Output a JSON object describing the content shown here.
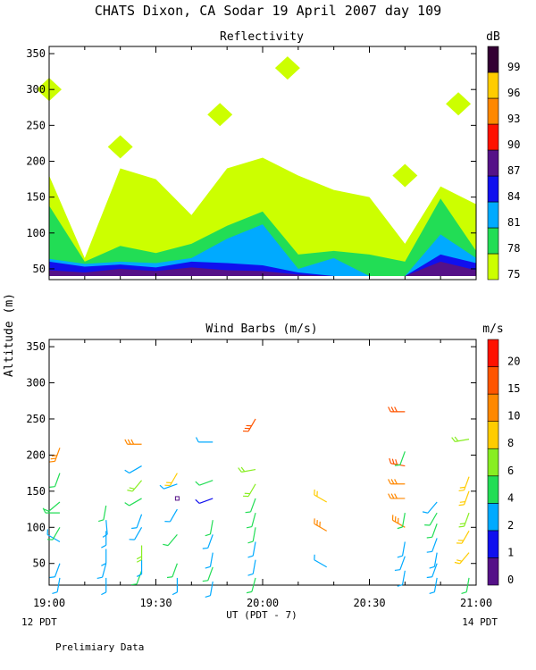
{
  "title": "CHATS Dixon, CA  Sodar  19 April 2007  day 109",
  "ylabel": "Altitude (m)",
  "xlabel": "UT  (PDT - 7)",
  "left_note": "12 PDT",
  "right_note": "14 PDT",
  "footer": "Prelimiary Data",
  "chart_data": [
    {
      "type": "heatmap",
      "title": "Reflectivity",
      "x_ticks": [
        "19:00",
        "19:30",
        "20:00",
        "20:30",
        "21:00"
      ],
      "y_ticks": [
        50,
        100,
        150,
        200,
        250,
        300,
        350
      ],
      "ylim": [
        35,
        360
      ],
      "colorbar": {
        "unit": "dB",
        "levels": [
          75,
          78,
          81,
          84,
          87,
          90,
          93,
          96,
          99
        ],
        "colors": [
          "#ccff00",
          "#22dd55",
          "#00aaff",
          "#1010ee",
          "#551188",
          "#ff1100",
          "#ff8800",
          "#ffcc00",
          "#330033"
        ]
      },
      "profiles": [
        {
          "time": "19:00",
          "d87": 48,
          "d84": 60,
          "d81": 64,
          "d78": 138,
          "d75": 180
        },
        {
          "time": "19:10",
          "d87": 45,
          "d84": 53,
          "d81": 57,
          "d78": 60,
          "d75": 65
        },
        {
          "time": "19:20",
          "d87": 50,
          "d84": 56,
          "d81": 60,
          "d78": 82,
          "d75": 190
        },
        {
          "time": "19:30",
          "d87": 47,
          "d84": 52,
          "d81": 58,
          "d78": 72,
          "d75": 175
        },
        {
          "time": "19:40",
          "d87": 52,
          "d84": 60,
          "d81": 65,
          "d78": 85,
          "d75": 125
        },
        {
          "time": "19:50",
          "d87": 48,
          "d84": 58,
          "d81": 92,
          "d78": 110,
          "d75": 190
        },
        {
          "time": "20:00",
          "d87": 47,
          "d84": 55,
          "d81": 112,
          "d78": 130,
          "d75": 205
        },
        {
          "time": "20:10",
          "d87": 42,
          "d84": 45,
          "d81": 50,
          "d78": 70,
          "d75": 180
        },
        {
          "time": "20:20",
          "d87": 40,
          "d84": 40,
          "d81": 65,
          "d78": 75,
          "d75": 160
        },
        {
          "time": "20:30",
          "d87": 40,
          "d84": 40,
          "d81": 40,
          "d78": 70,
          "d75": 150
        },
        {
          "time": "20:40",
          "d87": 40,
          "d84": 40,
          "d81": 40,
          "d78": 60,
          "d75": 85
        },
        {
          "time": "20:50",
          "d87": 60,
          "d84": 70,
          "d81": 98,
          "d78": 148,
          "d75": 165
        },
        {
          "time": "21:00",
          "d87": 48,
          "d84": 58,
          "d81": 65,
          "d78": 75,
          "d75": 140
        }
      ],
      "patches": [
        {
          "time": "19:20",
          "alt": 220,
          "db": 75
        },
        {
          "time": "19:48",
          "alt": 265,
          "db": 75
        },
        {
          "time": "20:07",
          "alt": 330,
          "db": 75
        },
        {
          "time": "20:40",
          "alt": 180,
          "db": 75
        },
        {
          "time": "20:55",
          "alt": 280,
          "db": 75
        },
        {
          "time": "19:00",
          "alt": 300,
          "db": 75
        }
      ]
    },
    {
      "type": "scatter",
      "title": "Wind Barbs (m/s)",
      "x_ticks": [
        "19:00",
        "19:30",
        "20:00",
        "20:30",
        "21:00"
      ],
      "y_ticks": [
        50,
        100,
        150,
        200,
        250,
        300,
        350
      ],
      "ylim": [
        20,
        360
      ],
      "colorbar": {
        "unit": "m/s",
        "levels": [
          0,
          1,
          2,
          4,
          6,
          8,
          10,
          15,
          20
        ],
        "colors": [
          "#551188",
          "#1010ee",
          "#00aaff",
          "#22dd55",
          "#88ee22",
          "#ffcc00",
          "#ff8800",
          "#ff5500",
          "#ff1100"
        ]
      },
      "columns": [
        {
          "time": "19:03",
          "barbs": [
            {
              "alt": 30,
              "dir": 190,
              "spd": 3
            },
            {
              "alt": 50,
              "dir": 200,
              "spd": 3
            },
            {
              "alt": 80,
              "dir": 300,
              "spd": 2
            },
            {
              "alt": 100,
              "dir": 210,
              "spd": 5
            },
            {
              "alt": 120,
              "dir": 270,
              "spd": 5
            },
            {
              "alt": 135,
              "dir": 230,
              "spd": 4
            },
            {
              "alt": 175,
              "dir": 200,
              "spd": 5
            },
            {
              "alt": 210,
              "dir": 200,
              "spd": 10
            }
          ]
        },
        {
          "time": "19:16",
          "barbs": [
            {
              "alt": 30,
              "dir": 180,
              "spd": 3
            },
            {
              "alt": 50,
              "dir": 195,
              "spd": 3
            },
            {
              "alt": 70,
              "dir": 180,
              "spd": 3
            },
            {
              "alt": 95,
              "dir": 180,
              "spd": 3
            },
            {
              "alt": 110,
              "dir": 175,
              "spd": 3
            },
            {
              "alt": 130,
              "dir": 190,
              "spd": 5
            }
          ]
        },
        {
          "time": "19:26",
          "barbs": [
            {
              "alt": 40,
              "dir": 200,
              "spd": 5
            },
            {
              "alt": 55,
              "dir": 180,
              "spd": 3
            },
            {
              "alt": 75,
              "dir": 180,
              "spd": 6
            },
            {
              "alt": 100,
              "dir": 210,
              "spd": 3
            },
            {
              "alt": 118,
              "dir": 200,
              "spd": 3
            },
            {
              "alt": 140,
              "dir": 240,
              "spd": 4
            },
            {
              "alt": 165,
              "dir": 220,
              "spd": 6
            },
            {
              "alt": 185,
              "dir": 240,
              "spd": 3
            },
            {
              "alt": 215,
              "dir": 270,
              "spd": 10
            }
          ]
        },
        {
          "time": "19:36",
          "barbs": [
            {
              "alt": 30,
              "dir": 180,
              "spd": 3
            },
            {
              "alt": 50,
              "dir": 200,
              "spd": 4
            },
            {
              "alt": 90,
              "dir": 220,
              "spd": 5
            },
            {
              "alt": 125,
              "dir": 210,
              "spd": 3
            },
            {
              "alt": 140,
              "dir": 0,
              "spd": 0
            },
            {
              "alt": 160,
              "dir": 250,
              "spd": 2
            },
            {
              "alt": 175,
              "dir": 210,
              "spd": 8
            }
          ]
        },
        {
          "time": "19:46",
          "barbs": [
            {
              "alt": 25,
              "dir": 190,
              "spd": 3
            },
            {
              "alt": 45,
              "dir": 200,
              "spd": 4
            },
            {
              "alt": 65,
              "dir": 190,
              "spd": 3
            },
            {
              "alt": 90,
              "dir": 200,
              "spd": 3
            },
            {
              "alt": 110,
              "dir": 190,
              "spd": 5
            },
            {
              "alt": 140,
              "dir": 250,
              "spd": 1
            },
            {
              "alt": 165,
              "dir": 250,
              "spd": 5
            },
            {
              "alt": 218,
              "dir": 270,
              "spd": 2
            }
          ]
        },
        {
          "time": "19:58",
          "barbs": [
            {
              "alt": 30,
              "dir": 195,
              "spd": 4
            },
            {
              "alt": 55,
              "dir": 190,
              "spd": 3
            },
            {
              "alt": 80,
              "dir": 190,
              "spd": 3
            },
            {
              "alt": 100,
              "dir": 190,
              "spd": 4
            },
            {
              "alt": 120,
              "dir": 195,
              "spd": 5
            },
            {
              "alt": 140,
              "dir": 200,
              "spd": 5
            },
            {
              "alt": 160,
              "dir": 210,
              "spd": 6
            },
            {
              "alt": 180,
              "dir": 260,
              "spd": 6
            },
            {
              "alt": 250,
              "dir": 210,
              "spd": 15
            }
          ]
        },
        {
          "time": "20:18",
          "barbs": [
            {
              "alt": 45,
              "dir": 300,
              "spd": 2
            },
            {
              "alt": 95,
              "dir": 300,
              "spd": 10
            },
            {
              "alt": 135,
              "dir": 300,
              "spd": 8
            }
          ]
        },
        {
          "time": "20:40",
          "barbs": [
            {
              "alt": 40,
              "dir": 190,
              "spd": 3
            },
            {
              "alt": 60,
              "dir": 200,
              "spd": 3
            },
            {
              "alt": 80,
              "dir": 190,
              "spd": 2
            },
            {
              "alt": 100,
              "dir": 300,
              "spd": 10
            },
            {
              "alt": 120,
              "dir": 190,
              "spd": 5
            },
            {
              "alt": 140,
              "dir": 270,
              "spd": 10
            },
            {
              "alt": 160,
              "dir": 270,
              "spd": 10
            },
            {
              "alt": 185,
              "dir": 280,
              "spd": 15
            },
            {
              "alt": 205,
              "dir": 200,
              "spd": 5
            },
            {
              "alt": 260,
              "dir": 270,
              "spd": 15
            }
          ]
        },
        {
          "time": "20:49",
          "barbs": [
            {
              "alt": 30,
              "dir": 190,
              "spd": 3
            },
            {
              "alt": 50,
              "dir": 200,
              "spd": 3
            },
            {
              "alt": 65,
              "dir": 190,
              "spd": 3
            },
            {
              "alt": 85,
              "dir": 200,
              "spd": 3
            },
            {
              "alt": 105,
              "dir": 200,
              "spd": 5
            },
            {
              "alt": 120,
              "dir": 210,
              "spd": 5
            },
            {
              "alt": 135,
              "dir": 220,
              "spd": 3
            }
          ]
        },
        {
          "time": "20:58",
          "barbs": [
            {
              "alt": 30,
              "dir": 190,
              "spd": 5
            },
            {
              "alt": 65,
              "dir": 220,
              "spd": 8
            },
            {
              "alt": 95,
              "dir": 210,
              "spd": 8
            },
            {
              "alt": 120,
              "dir": 200,
              "spd": 6
            },
            {
              "alt": 150,
              "dir": 200,
              "spd": 8
            },
            {
              "alt": 170,
              "dir": 200,
              "spd": 8
            },
            {
              "alt": 222,
              "dir": 260,
              "spd": 6
            }
          ]
        }
      ]
    }
  ]
}
